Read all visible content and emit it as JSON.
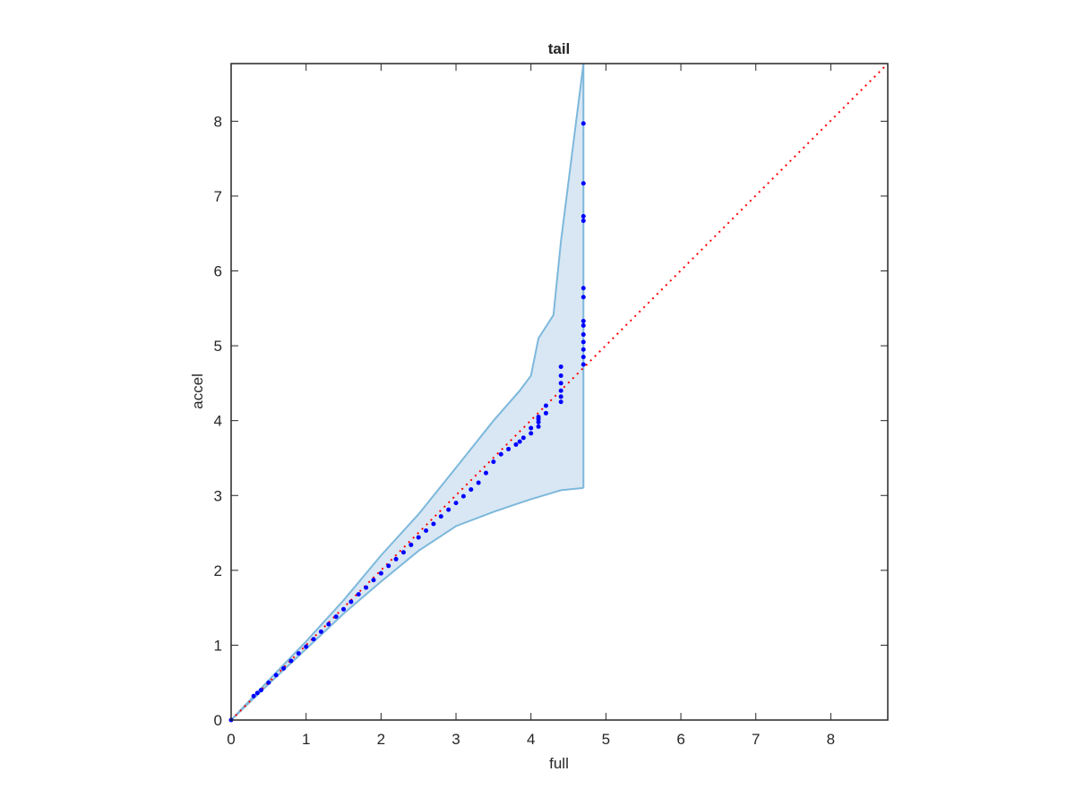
{
  "chart_data": {
    "type": "scatter",
    "title": "tail",
    "xlabel": "full",
    "ylabel": "accel",
    "xlim": [
      0,
      8.76
    ],
    "ylim": [
      0,
      8.77
    ],
    "xticks": [
      0,
      1,
      2,
      3,
      4,
      5,
      6,
      7,
      8
    ],
    "yticks": [
      0,
      1,
      2,
      3,
      4,
      5,
      6,
      7,
      8
    ],
    "points": {
      "color": "#0000ff",
      "x": [
        0,
        0.3,
        0.35,
        0.4,
        0.5,
        0.6,
        0.7,
        0.8,
        0.9,
        1.0,
        1.1,
        1.2,
        1.3,
        1.4,
        1.5,
        1.6,
        1.7,
        1.8,
        1.9,
        2.0,
        2.1,
        2.2,
        2.3,
        2.4,
        2.5,
        2.6,
        2.7,
        2.8,
        2.9,
        3.0,
        3.1,
        3.2,
        3.3,
        3.4,
        3.5,
        3.6,
        3.7,
        3.8,
        3.85,
        3.9,
        4.0,
        4.0,
        4.1,
        4.1,
        4.1,
        4.1,
        4.2,
        4.2,
        4.4,
        4.4,
        4.4,
        4.4,
        4.4,
        4.4,
        4.7,
        4.7,
        4.7,
        4.7,
        4.7,
        4.7,
        4.7,
        4.7,
        4.7,
        4.7,
        4.7,
        4.7,
        4.7
      ],
      "y": [
        0,
        0.32,
        0.36,
        0.4,
        0.5,
        0.6,
        0.69,
        0.79,
        0.89,
        0.98,
        1.08,
        1.18,
        1.28,
        1.38,
        1.48,
        1.58,
        1.68,
        1.77,
        1.87,
        1.96,
        2.06,
        2.15,
        2.24,
        2.34,
        2.44,
        2.53,
        2.62,
        2.72,
        2.81,
        2.9,
        2.99,
        3.08,
        3.17,
        3.3,
        3.45,
        3.55,
        3.62,
        3.68,
        3.72,
        3.77,
        3.83,
        3.9,
        3.92,
        3.98,
        4.02,
        4.05,
        4.1,
        4.2,
        4.25,
        4.32,
        4.4,
        4.5,
        4.6,
        4.72,
        4.75,
        4.85,
        4.95,
        5.05,
        5.15,
        5.27,
        5.33,
        5.65,
        5.77,
        6.67,
        6.73,
        7.17,
        7.97
      ]
    },
    "band": {
      "color": "#7db8dc",
      "fill": "#d8e7f3",
      "x": [
        0,
        0.5,
        1.0,
        1.5,
        2.0,
        2.5,
        3.0,
        3.5,
        3.85,
        4.0,
        4.1,
        4.3,
        4.4,
        4.7
      ],
      "upper": [
        0,
        0.53,
        1.05,
        1.6,
        2.2,
        2.75,
        3.37,
        4.0,
        4.4,
        4.6,
        5.1,
        5.41,
        6.4,
        8.77
      ],
      "lower": [
        0,
        0.48,
        0.95,
        1.42,
        1.85,
        2.26,
        2.59,
        2.78,
        2.9,
        2.95,
        2.98,
        3.04,
        3.07,
        3.1
      ]
    },
    "reference_line": {
      "color": "#ff0000",
      "x": [
        0,
        8.76
      ],
      "y": [
        0,
        8.77
      ]
    }
  }
}
